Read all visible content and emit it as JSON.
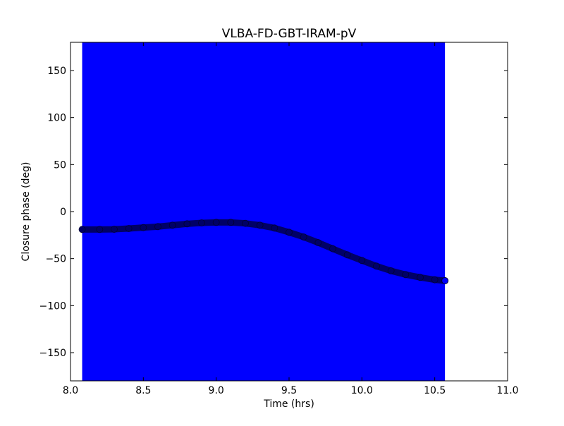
{
  "chart_data": {
    "type": "scatter",
    "title": "VLBA-FD-GBT-IRAM-pV",
    "xlabel": "Time (hrs)",
    "ylabel": "Closure phase (deg)",
    "xlim": [
      8.0,
      11.0
    ],
    "ylim": [
      -180,
      180
    ],
    "xticks": [
      8.0,
      8.5,
      9.0,
      9.5,
      10.0,
      10.5,
      11.0
    ],
    "xtick_labels": [
      "8.0",
      "8.5",
      "9.0",
      "9.5",
      "10.0",
      "10.5",
      "11.0"
    ],
    "yticks": [
      150,
      100,
      50,
      0,
      -50,
      -100,
      -150
    ],
    "ytick_labels": [
      "150",
      "100",
      "50",
      "0",
      "−50",
      "−100",
      "−150"
    ],
    "grid": false,
    "error_band": {
      "x_range": [
        8.08,
        10.57
      ],
      "y_range": [
        -180,
        180
      ],
      "color": "#0000ff"
    },
    "marker_color": "#000066",
    "x": [
      8.08,
      8.2,
      8.3,
      8.4,
      8.5,
      8.6,
      8.7,
      8.8,
      8.9,
      9.0,
      9.1,
      9.2,
      9.3,
      9.4,
      9.5,
      9.6,
      9.7,
      9.8,
      9.9,
      10.0,
      10.1,
      10.2,
      10.3,
      10.4,
      10.5,
      10.57
    ],
    "y": [
      -19,
      -19,
      -18.8,
      -18,
      -17,
      -16,
      -14.5,
      -13,
      -12,
      -11.5,
      -11.5,
      -12.5,
      -14.5,
      -17.5,
      -22,
      -27,
      -33,
      -39.5,
      -46,
      -52,
      -58,
      -63,
      -67,
      -70,
      -72.5,
      -73.5
    ]
  }
}
